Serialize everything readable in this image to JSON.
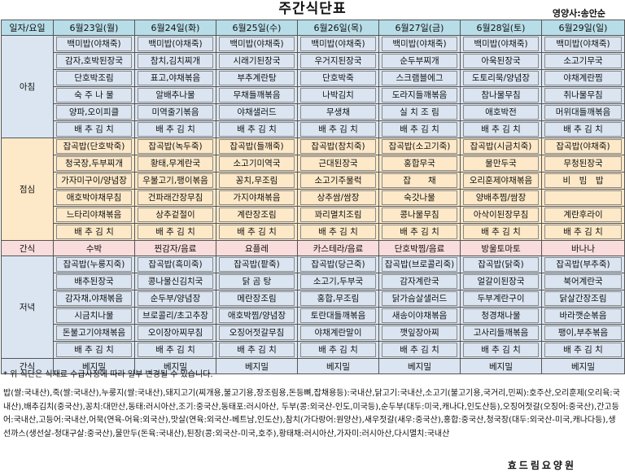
{
  "title": "주간식단표",
  "dietitian": "영양사:송안순",
  "header": {
    "first": "일자/요일",
    "days": [
      "6월23일(월)",
      "6월24일(화)",
      "6월25일(수)",
      "6월26일(목)",
      "6월27일(금)",
      "6월28일(토)",
      "6월29일(일)"
    ]
  },
  "breakfast": {
    "label": "아침",
    "rows": [
      [
        "백미밥(야채죽)",
        "백미밥(야채죽)",
        "백미밥(야채죽)",
        "백미밥(야채죽)",
        "백미밥(야채죽)",
        "백미밥(야채죽)",
        "백미밥(야채죽)"
      ],
      [
        "감자,호박된장국",
        "참치,김치찌개",
        "시래기된장국",
        "우거지된장국",
        "순두부찌개",
        "아욱된장국",
        "소고기무국"
      ],
      [
        "단호박조림",
        "표고,야채볶음",
        "부추계란탕",
        "단호박죽",
        "스크램블에그",
        "도토리묵/양념장",
        "야채계란찜"
      ],
      [
        "숙 주 나 물",
        "알배추나물",
        "무채들깨볶음",
        "나박김치",
        "도라지들깨볶음",
        "참나물무침",
        "취나물무침"
      ],
      [
        "양파,오이피클",
        "미역줄기볶음",
        "야채샐러드",
        "무생채",
        "실 치 조 림",
        "애호박전",
        "머위대들깨볶음"
      ],
      [
        "배 추 김 치",
        "배 추 김 치",
        "배 추 김 치",
        "배 추 김 치",
        "배 추 김 치",
        "배 추 김 치",
        "배 추 김 치"
      ]
    ]
  },
  "lunch": {
    "label": "점심",
    "rows": [
      [
        "잡곡밥(단호박죽)",
        "잡곡밥(녹두죽)",
        "잡곡밥(들깨죽)",
        "잡곡밥(참치죽)",
        "잡곡밥(소고기죽)",
        "잡곡밥(시금치죽)",
        "잡곡밥(야채죽)"
      ],
      [
        "청국장,두부찌개",
        "황태,무계란국",
        "소고기미역국",
        "근대된장국",
        "홍합무국",
        "물만두국",
        "무청된장국"
      ],
      [
        "가자미구이/양념장",
        "우불고기,팽이볶음",
        "꽁치,무조림",
        "소고기주물럭",
        "잡　　채",
        "오리훈제야채볶음",
        "비　빔　밥"
      ],
      [
        "애호박야채무침",
        "건파래간장무침",
        "가지야채볶음",
        "상추쌈/쌈장",
        "숙갓나물",
        "양배추찜/쌈장",
        ""
      ],
      [
        "느타리야채볶음",
        "상추겉절이",
        "계란장조림",
        "꽈리멸치조림",
        "콩나물무침",
        "아삭이된장무침",
        "계란후라이"
      ],
      [
        "배 추 김 치",
        "배 추 김 치",
        "배 추 김 치",
        "배 추 김 치",
        "배 추 김 치",
        "배 추 김 치",
        "배 추 김 치"
      ]
    ]
  },
  "snack": {
    "label": "간식",
    "items": [
      "수박",
      "찐감자/음료",
      "요플레",
      "카스테라/음료",
      "단호박찜/음료",
      "방울토마토",
      "바나나"
    ]
  },
  "dinner": {
    "label": "저녁",
    "rows": [
      [
        "잡곡밥(누룽지죽)",
        "잡곡밥(흑미죽)",
        "잡곡밥(팥죽)",
        "잡곡밥(당근죽)",
        "잡곡밥(브로콜리죽)",
        "잡곡밥(닭죽)",
        "잡곡밥(부추죽)"
      ],
      [
        "배추된장국",
        "콩나물신김치국",
        "닭 곰 탕",
        "소고기,두부국",
        "감자계란국",
        "얼갈이된장국",
        "북어계란국"
      ],
      [
        "감자채,야채볶음",
        "순두부/양념장",
        "메란장조림",
        "홍합,무조림",
        "닭가슴살샐러드",
        "두부계란구이",
        "닭살간장조림"
      ],
      [
        "시금치나물",
        "브로콜리/초고추장",
        "애호박찜/양념장",
        "토란대들깨볶음",
        "새송이야채볶음",
        "청경채나물",
        "바라깻순볶음"
      ],
      [
        "돈불고기야채볶음",
        "오이장아찌무침",
        "오징어젓갈무침",
        "야채계란말이",
        "깻잎장아찌",
        "고사리들깨볶음",
        "팽이,부추볶음"
      ],
      [
        "배 추 김 치",
        "배 추 김 치",
        "배 추 김 치",
        "배 추 김 치",
        "배 추 김 치",
        "배 추 김 치",
        "배 추 김 치"
      ]
    ]
  },
  "evening_snack": {
    "label": "간식",
    "items": [
      "베지밀",
      "베지밀",
      "베지밀",
      "베지밀",
      "베지밀",
      "베지밀",
      "베지밀"
    ]
  },
  "notice": "* 위 식단은 식재료 수급사정에 따라 일부 변경될 수 있습니다.",
  "origin": "밥(쌀:국내산),죽(쌀:국내산),누룽지(쌀:국내산),돼지고기(찌개용,불고기용,장조림용,돈등뼈,잡채용등):국내산,닭고기:국내산,소고기(불고기용,국거리,민찌):호주산,오리훈제(오리육:국내산),배추김치(중국산),꽁치:대만산,동태:러시아산,조기:중국산,동태포:러시아산, 두부(콩:외국산-인도,미국등),순두부(대두:미국,캐나다,인도산등),오징어젓갈(오징어:중국산),간고등어:국내산,고등어:국내산,어묵(연육-어육:외국산),맛살(연육:외국산-베트남,인도산),참치(가다랑어:원양산),새우젓갈(새우:중국산),홍합:중국산,청국장(대두:외국산-미국,캐나다등),생선까스(생선살-청대구살:중국산),물만두(돈육:국내산),된장(콩:외국산-미국,호주),황태채:러시아산,가자미:러시아산,다시멸치:국내산",
  "footer": "효드림요양원"
}
